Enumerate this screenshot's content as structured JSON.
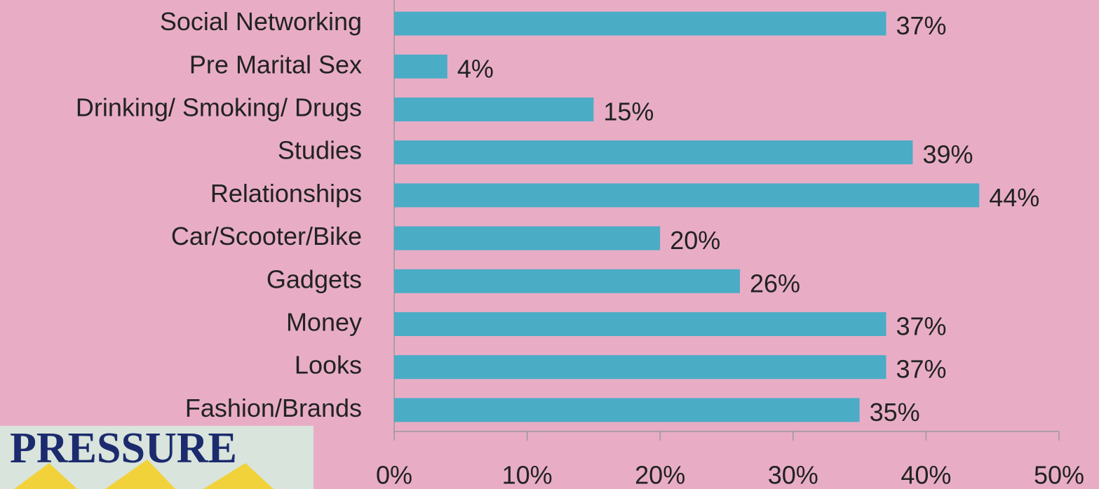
{
  "logo_text": "PRESSURE",
  "chart_data": {
    "type": "barh",
    "categories": [
      "Social Networking",
      "Pre Marital Sex",
      "Drinking/ Smoking/ Drugs",
      "Studies",
      "Relationships",
      "Car/Scooter/Bike",
      "Gadgets",
      "Money",
      "Looks",
      "Fashion/Brands"
    ],
    "values": [
      37,
      4,
      15,
      39,
      44,
      20,
      26,
      37,
      37,
      35
    ],
    "value_labels": [
      "37%",
      "4%",
      "15%",
      "39%",
      "44%",
      "20%",
      "26%",
      "37%",
      "37%",
      "35%"
    ],
    "color": "#4bacc6",
    "xlim": [
      0,
      50
    ],
    "xticks": [
      {
        "value": 0,
        "label": "0%"
      },
      {
        "value": 10,
        "label": "10%"
      },
      {
        "value": 20,
        "label": "20%"
      },
      {
        "value": 30,
        "label": "30%"
      },
      {
        "value": 40,
        "label": "40%"
      },
      {
        "value": 50,
        "label": "50%"
      }
    ],
    "grid": false
  }
}
